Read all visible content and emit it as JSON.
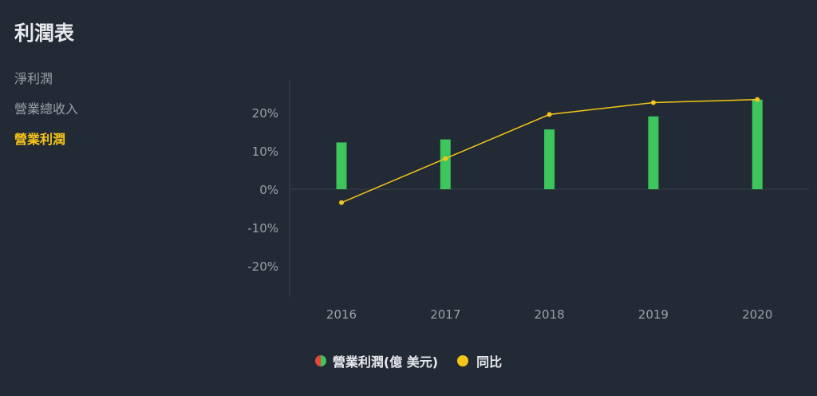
{
  "page": {
    "title": "利潤表"
  },
  "sidebar": {
    "items": [
      {
        "label": "淨利潤",
        "active": false
      },
      {
        "label": "營業總收入",
        "active": false
      },
      {
        "label": "營業利潤",
        "active": true
      }
    ]
  },
  "colors": {
    "bar": "#3cc65b",
    "bar_negative": "#e9463d",
    "line": "#f5c518",
    "axis": "#3a4350",
    "tick_text": "#9aa1ab"
  },
  "chart_data": {
    "type": "bar",
    "categories": [
      "2016",
      "2017",
      "2018",
      "2019",
      "2020"
    ],
    "y_ticks": [
      "20%",
      "10%",
      "0%",
      "-10%",
      "-20%"
    ],
    "ylim": [
      -28,
      28
    ],
    "grid": false,
    "legend_position": "bottom-center",
    "series": [
      {
        "name": "營業利潤(億 美元)",
        "type": "bar",
        "values": [
          12.2,
          13.0,
          15.6,
          19.0,
          23.4
        ]
      },
      {
        "name": "同比",
        "type": "line",
        "values": [
          -3.5,
          8.0,
          19.5,
          22.6,
          23.4
        ]
      }
    ]
  }
}
